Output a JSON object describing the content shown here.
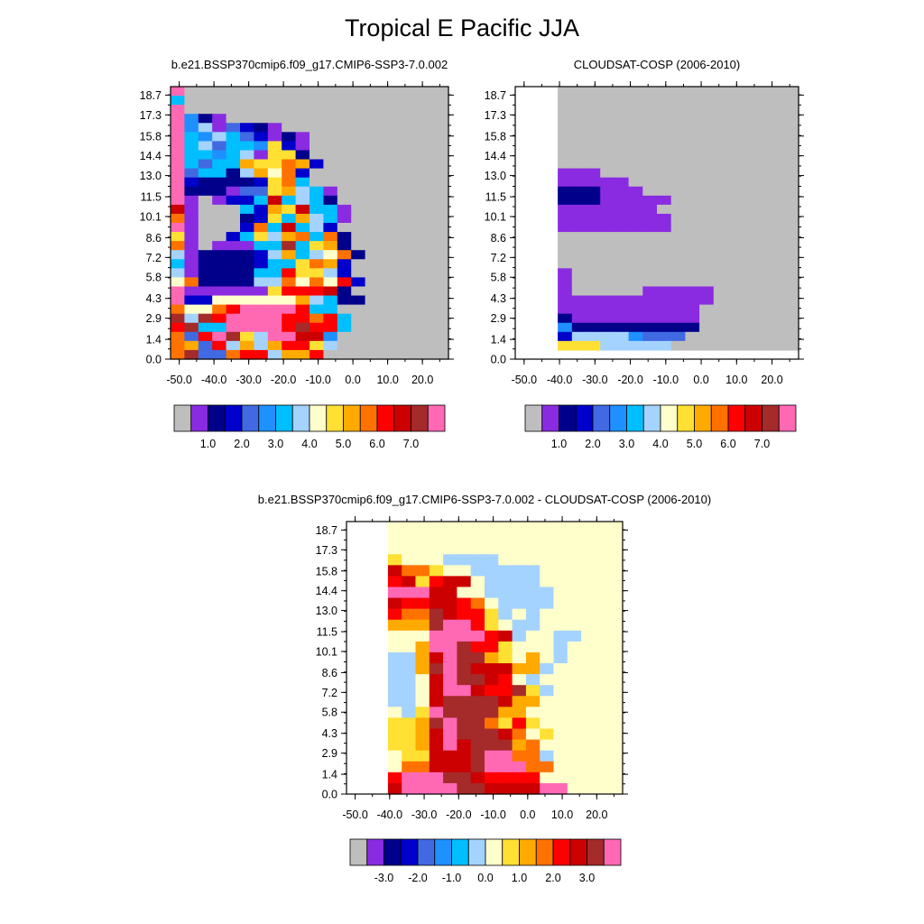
{
  "title": "Tropical E Pacific JJA",
  "chart_data": [
    {
      "type": "heatmap",
      "title": "b.e21.BSSP370cmip6.f09_g17.CMIP6-SSP3-7.0.002",
      "x_ticks": [
        "-50.0",
        "-40.0",
        "-30.0",
        "-20.0",
        "-10.0",
        "0.0",
        "10.0",
        "20.0"
      ],
      "y_ticks": [
        "0.0",
        "1.4",
        "2.9",
        "4.3",
        "5.8",
        "7.2",
        "8.6",
        "10.1",
        "11.5",
        "13.0",
        "14.4",
        "15.8",
        "17.3",
        "18.7"
      ],
      "colorbar_labels": [
        "1.0",
        "2.0",
        "3.0",
        "4.0",
        "5.0",
        "6.0",
        "7.0"
      ],
      "grid": [
        "ggggggggggggggg",
        "7ggggggggggggggg",
        "6ggggggggggggggg",
        "Pggggggggggggggggggggggggggggggggggggggggggggggggggggggggggggggggggggggggggggggggggggggggggggggggggggggggggggggggggggggggg",
        "P32Pgggggggg",
        "P876P8hgggggg",
        "P7563ggggggg",
        "P7686hggggggg",
        "P6766hhgggggg",
        "P73636ggggg",
        "P2777ggggg",
        "P2222ggggg",
        "P2216gggg"
      ],
      "rows": [
        "ggggggggggggggg",
        "7gggggggggggggg",
        "6gggggggggggggg",
        "P33pgggggggggggg",
        "P872P2ggggggggggg",
        "P87623PPgggggggg",
        "P7744g2Pgggggggg",
        "P4675hp2gggggggg",
        "P65677aag2gggggg",
        "P3667ba9b3gggggg",
        "P3344avb4ggggggg",
        "P33446b73p3ggggg",
        "P33477b7673gggg",
        "P2222277887gggg",
        "P11122277332gggg",
        "P1PPPP3877672ggg",
        "r1gggP36976766Pg",
        "d1gggg26a6872PPg",
        "a1gggg3e6d67Pp1g",
        "7PggPg31869a72g",
        "8P22PP26873a3g",
        "7P2112276e4d6ag",
        "6P2122367ea78ag",
        "7P22222638a888g",
        "R2P22226a98vbg",
        "7P2222P6a8922g",
        "6P11P1278v9a1g",
        "P88889aa9998gg",
        "RWWaaaaRRWWa6gg",
        "d3PbdbPPdRbR76gg",
        "b3bb8899abbcbb8g",
        "R36bRaRRbbb66gg",
        "bbPPPPbbRRRRRgg"
      ]
    },
    {
      "type": "heatmap",
      "title": "CLOUDSAT-COSP (2006-2010)",
      "x_ticks": [
        "-50.0",
        "-40.0",
        "-30.0",
        "-20.0",
        "-10.0",
        "0.0",
        "10.0",
        "20.0"
      ],
      "y_ticks": [
        "0.0",
        "1.4",
        "2.9",
        "4.3",
        "5.8",
        "7.2",
        "8.6",
        "10.1",
        "11.5",
        "13.0",
        "14.4",
        "15.8",
        "17.3",
        "18.7"
      ],
      "colorbar_labels": [
        "1.0",
        "2.0",
        "3.0",
        "4.0",
        "5.0",
        "6.0",
        "7.0"
      ]
    },
    {
      "type": "heatmap",
      "title": "b.e21.BSSP370cmip6.f09_g17.CMIP6-SSP3-7.0.002 - CLOUDSAT-COSP (2006-2010)",
      "x_ticks": [
        "-50.0",
        "-40.0",
        "-30.0",
        "-20.0",
        "-10.0",
        "0.0",
        "10.0",
        "20.0"
      ],
      "y_ticks": [
        "0.0",
        "1.4",
        "2.9",
        "4.3",
        "5.8",
        "7.2",
        "8.6",
        "10.1",
        "11.5",
        "13.0",
        "14.4",
        "15.8",
        "17.3",
        "18.7"
      ],
      "colorbar_labels": [
        "-3.0",
        "-2.0",
        "-1.0",
        "0.0",
        "1.0",
        "2.0",
        "3.0"
      ]
    }
  ],
  "colormap": [
    "#bebebe",
    "#8a2be2",
    "#00008b",
    "#0000cd",
    "#4169e1",
    "#1e90ff",
    "#00bfff",
    "#a4d3ff",
    "#ffffcc",
    "#ffe033",
    "#ffaa00",
    "#ff7200",
    "#ff0000",
    "#cc0000",
    "#a52a2a",
    "#ff69b4"
  ]
}
